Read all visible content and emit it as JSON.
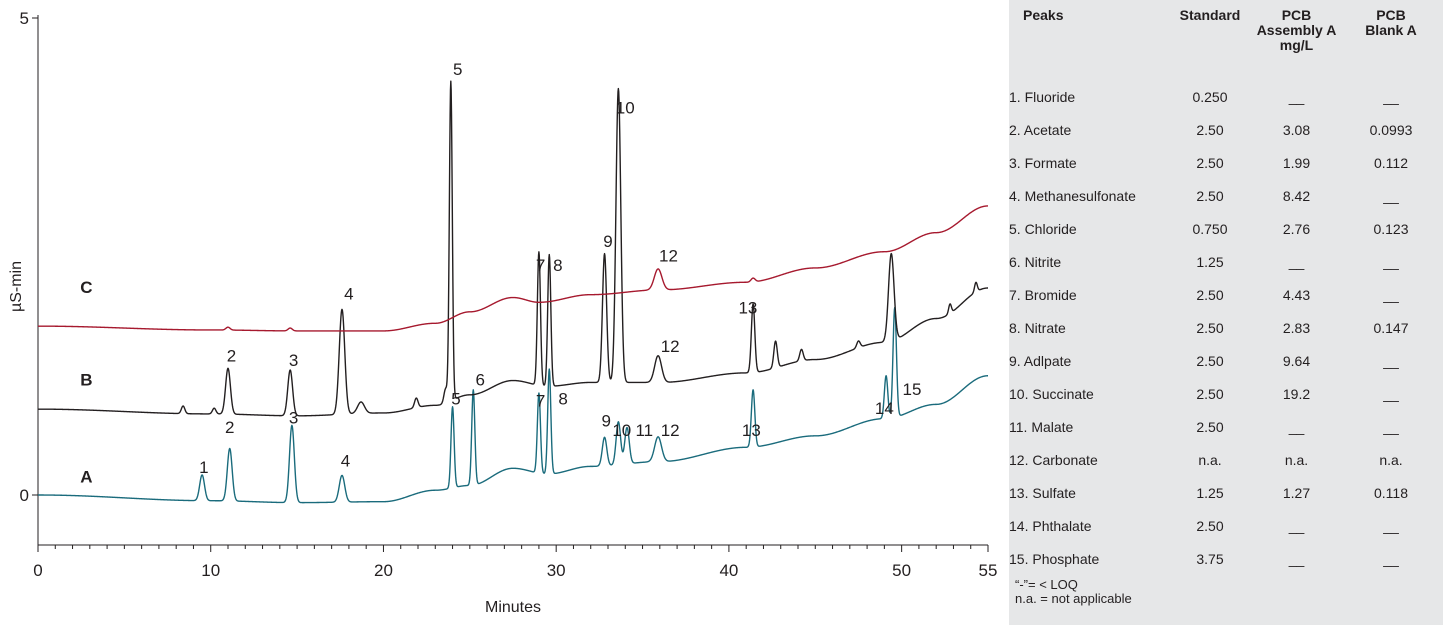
{
  "chart_data": {
    "type": "line",
    "xlabel": "Minutes",
    "ylabel": "µS-min",
    "xlim": [
      0,
      55
    ],
    "ylim": [
      -0.5,
      5
    ],
    "x_ticks": [
      0,
      10,
      20,
      30,
      40,
      50,
      55
    ],
    "y_ticks": [
      0,
      5
    ],
    "grid": false,
    "series": [
      {
        "name": "A",
        "color": "#1a6b7c",
        "baseline": [
          [
            0,
            0.0
          ],
          [
            10,
            -0.06
          ],
          [
            15,
            -0.08
          ],
          [
            20,
            -0.07
          ],
          [
            23,
            0.05
          ],
          [
            25,
            0.1
          ],
          [
            27.5,
            0.28
          ],
          [
            29.5,
            0.22
          ],
          [
            32,
            0.3
          ],
          [
            36,
            0.35
          ],
          [
            41,
            0.5
          ],
          [
            45,
            0.62
          ],
          [
            49,
            0.8
          ],
          [
            52,
            0.95
          ],
          [
            55,
            1.25
          ]
        ],
        "peaks": [
          {
            "t": 9.5,
            "h": 0.27,
            "w": 0.14,
            "label": "1"
          },
          {
            "t": 11.1,
            "h": 0.55,
            "w": 0.14,
            "label": "2"
          },
          {
            "t": 14.7,
            "h": 0.81,
            "w": 0.14,
            "label": "3"
          },
          {
            "t": 17.6,
            "h": 0.28,
            "w": 0.16,
            "label": "4"
          },
          {
            "t": 24.0,
            "h": 0.85,
            "w": 0.09,
            "label": "5"
          },
          {
            "t": 25.2,
            "h": 1.0,
            "w": 0.09,
            "label": "6"
          },
          {
            "t": 29.0,
            "h": 0.84,
            "w": 0.09,
            "label": "7"
          },
          {
            "t": 29.6,
            "h": 1.1,
            "w": 0.09,
            "label": "8"
          },
          {
            "t": 32.8,
            "h": 0.3,
            "w": 0.13,
            "label": "9"
          },
          {
            "t": 33.6,
            "h": 0.45,
            "w": 0.13,
            "label": "10"
          },
          {
            "t": 34.1,
            "h": 0.38,
            "w": 0.13,
            "label": "11"
          },
          {
            "t": 35.9,
            "h": 0.26,
            "w": 0.2,
            "label": "12"
          },
          {
            "t": 41.4,
            "h": 0.6,
            "w": 0.1,
            "label": "13"
          },
          {
            "t": 49.1,
            "h": 0.45,
            "w": 0.1,
            "label": "14"
          },
          {
            "t": 49.6,
            "h": 1.15,
            "w": 0.1,
            "label": "15"
          }
        ]
      },
      {
        "name": "B",
        "color": "#231f20",
        "baseline": [
          [
            0,
            0.9
          ],
          [
            10,
            0.85
          ],
          [
            15,
            0.83
          ],
          [
            20,
            0.86
          ],
          [
            23,
            0.94
          ],
          [
            25,
            1.05
          ],
          [
            27.5,
            1.2
          ],
          [
            29.5,
            1.14
          ],
          [
            32,
            1.18
          ],
          [
            36,
            1.18
          ],
          [
            41,
            1.28
          ],
          [
            45,
            1.42
          ],
          [
            49,
            1.6
          ],
          [
            52,
            1.85
          ],
          [
            55,
            2.17
          ]
        ],
        "peaks": [
          {
            "t": 8.4,
            "h": 0.08,
            "w": 0.1,
            "label": ""
          },
          {
            "t": 10.2,
            "h": 0.06,
            "w": 0.1,
            "label": ""
          },
          {
            "t": 11.0,
            "h": 0.48,
            "w": 0.14,
            "label": "2"
          },
          {
            "t": 14.6,
            "h": 0.48,
            "w": 0.14,
            "label": "3"
          },
          {
            "t": 17.6,
            "h": 1.1,
            "w": 0.16,
            "label": "4"
          },
          {
            "t": 18.7,
            "h": 0.12,
            "w": 0.2,
            "label": ""
          },
          {
            "t": 21.9,
            "h": 0.1,
            "w": 0.1,
            "label": ""
          },
          {
            "t": 23.6,
            "h": 0.15,
            "w": 0.1,
            "label": ""
          },
          {
            "t": 23.9,
            "h": 3.35,
            "w": 0.085,
            "label": "5"
          },
          {
            "t": 24.1,
            "h": 0.0,
            "w": 0.1,
            "label": "6"
          },
          {
            "t": 29.0,
            "h": 1.4,
            "w": 0.09,
            "label": "7"
          },
          {
            "t": 29.6,
            "h": 1.38,
            "w": 0.09,
            "label": "8"
          },
          {
            "t": 32.8,
            "h": 1.35,
            "w": 0.12,
            "label": "9"
          },
          {
            "t": 33.6,
            "h": 3.08,
            "w": 0.14,
            "label": "10"
          },
          {
            "t": 35.9,
            "h": 0.28,
            "w": 0.2,
            "label": "12"
          },
          {
            "t": 41.4,
            "h": 0.72,
            "w": 0.1,
            "label": "13"
          },
          {
            "t": 42.7,
            "h": 0.28,
            "w": 0.1,
            "label": ""
          },
          {
            "t": 44.2,
            "h": 0.12,
            "w": 0.1,
            "label": ""
          },
          {
            "t": 47.5,
            "h": 0.07,
            "w": 0.1,
            "label": ""
          },
          {
            "t": 49.4,
            "h": 0.92,
            "w": 0.16,
            "label": ""
          },
          {
            "t": 52.8,
            "h": 0.1,
            "w": 0.08,
            "label": ""
          },
          {
            "t": 54.3,
            "h": 0.1,
            "w": 0.08,
            "label": ""
          }
        ]
      },
      {
        "name": "C",
        "color": "#a6192e",
        "baseline": [
          [
            0,
            1.77
          ],
          [
            10,
            1.73
          ],
          [
            15,
            1.72
          ],
          [
            20,
            1.72
          ],
          [
            23,
            1.8
          ],
          [
            25,
            1.92
          ],
          [
            27.5,
            2.07
          ],
          [
            29,
            2.02
          ],
          [
            32,
            2.1
          ],
          [
            36,
            2.15
          ],
          [
            41,
            2.23
          ],
          [
            45,
            2.38
          ],
          [
            49,
            2.55
          ],
          [
            52,
            2.75
          ],
          [
            55,
            3.03
          ]
        ],
        "peaks": [
          {
            "t": 11.0,
            "h": 0.03,
            "w": 0.12,
            "label": ""
          },
          {
            "t": 14.6,
            "h": 0.03,
            "w": 0.12,
            "label": ""
          },
          {
            "t": 35.9,
            "h": 0.22,
            "w": 0.22,
            "label": "12"
          },
          {
            "t": 41.4,
            "h": 0.04,
            "w": 0.12,
            "label": ""
          }
        ]
      }
    ],
    "peak_labels": [
      {
        "series": "A",
        "text": "1",
        "x": 9.6,
        "y": 0.23
      },
      {
        "series": "A",
        "text": "2",
        "x": 11.1,
        "y": 0.65
      },
      {
        "series": "A",
        "text": "3",
        "x": 14.8,
        "y": 0.75
      },
      {
        "series": "A",
        "text": "4",
        "x": 17.8,
        "y": 0.3
      },
      {
        "series": "A",
        "text": "5",
        "x": 24.2,
        "y": 0.95
      },
      {
        "series": "A",
        "text": "6",
        "x": 25.6,
        "y": 1.15
      },
      {
        "series": "A",
        "text": "7",
        "x": 29.1,
        "y": 0.93
      },
      {
        "series": "A",
        "text": "8",
        "x": 30.4,
        "y": 0.95
      },
      {
        "series": "A",
        "text": "9",
        "x": 32.9,
        "y": 0.72
      },
      {
        "series": "A",
        "text": "10",
        "x": 33.8,
        "y": 0.62
      },
      {
        "series": "A",
        "text": "11",
        "x": 35.1,
        "y": 0.62
      },
      {
        "series": "A",
        "text": "12",
        "x": 36.6,
        "y": 0.62
      },
      {
        "series": "A",
        "text": "13",
        "x": 41.3,
        "y": 0.62
      },
      {
        "series": "A",
        "text": "14",
        "x": 49.0,
        "y": 0.85
      },
      {
        "series": "A",
        "text": "15",
        "x": 50.6,
        "y": 1.05
      },
      {
        "series": "B",
        "text": "2",
        "x": 11.2,
        "y": 1.4
      },
      {
        "series": "B",
        "text": "3",
        "x": 14.8,
        "y": 1.35
      },
      {
        "series": "B",
        "text": "4",
        "x": 18.0,
        "y": 2.05
      },
      {
        "series": "B",
        "text": "5",
        "x": 24.3,
        "y": 4.4
      },
      {
        "series": "B",
        "text": "7",
        "x": 29.1,
        "y": 2.35
      },
      {
        "series": "B",
        "text": "8",
        "x": 30.1,
        "y": 2.35
      },
      {
        "series": "B",
        "text": "9",
        "x": 33.0,
        "y": 2.6
      },
      {
        "series": "B",
        "text": "10",
        "x": 34.0,
        "y": 4.0
      },
      {
        "series": "B",
        "text": "12",
        "x": 36.6,
        "y": 1.5
      },
      {
        "series": "B",
        "text": "13",
        "x": 41.1,
        "y": 1.9
      },
      {
        "series": "C",
        "text": "12",
        "x": 36.5,
        "y": 2.45
      }
    ],
    "trace_labels": [
      {
        "text": "C",
        "x": 2.8,
        "y": 2.12
      },
      {
        "text": "B",
        "x": 2.8,
        "y": 1.15
      },
      {
        "text": "A",
        "x": 2.8,
        "y": 0.13
      }
    ]
  },
  "table": {
    "headers": {
      "peaks": "Peaks",
      "standard": "Standard",
      "assembly_a": [
        "PCB",
        "Assembly A",
        "mg/L"
      ],
      "blank_a": [
        "PCB",
        "Blank A"
      ]
    },
    "rows": [
      {
        "name": "1. Fluoride",
        "standard": "0.250",
        "assembly_a": "__",
        "blank_a": "__"
      },
      {
        "name": "2. Acetate",
        "standard": "2.50",
        "assembly_a": "3.08",
        "blank_a": "0.0993"
      },
      {
        "name": "3. Formate",
        "standard": "2.50",
        "assembly_a": "1.99",
        "blank_a": "0.112"
      },
      {
        "name": "4. Methanesulfonate",
        "standard": "2.50",
        "assembly_a": "8.42",
        "blank_a": "__"
      },
      {
        "name": "5. Chloride",
        "standard": "0.750",
        "assembly_a": "2.76",
        "blank_a": "0.123"
      },
      {
        "name": "6. Nitrite",
        "standard": "1.25",
        "assembly_a": "__",
        "blank_a": "__"
      },
      {
        "name": "7. Bromide",
        "standard": "2.50",
        "assembly_a": "4.43",
        "blank_a": "__"
      },
      {
        "name": "8. Nitrate",
        "standard": "2.50",
        "assembly_a": "2.83",
        "blank_a": "0.147"
      },
      {
        "name": "9. Adlpate",
        "standard": "2.50",
        "assembly_a": "9.64",
        "blank_a": "__"
      },
      {
        "name": "10. Succinate",
        "standard": "2.50",
        "assembly_a": "19.2",
        "blank_a": "__"
      },
      {
        "name": "11. Malate",
        "standard": "2.50",
        "assembly_a": "__",
        "blank_a": "__"
      },
      {
        "name": "12. Carbonate",
        "standard": "n.a.",
        "assembly_a": "n.a.",
        "blank_a": "n.a."
      },
      {
        "name": "13. Sulfate",
        "standard": "1.25",
        "assembly_a": "1.27",
        "blank_a": "0.118"
      },
      {
        "name": "14. Phthalate",
        "standard": "2.50",
        "assembly_a": "__",
        "blank_a": "__"
      },
      {
        "name": "15. Phosphate",
        "standard": "3.75",
        "assembly_a": "__",
        "blank_a": "__"
      }
    ],
    "notes": [
      "“-”= < LOQ",
      "n.a. = not applicable"
    ]
  }
}
